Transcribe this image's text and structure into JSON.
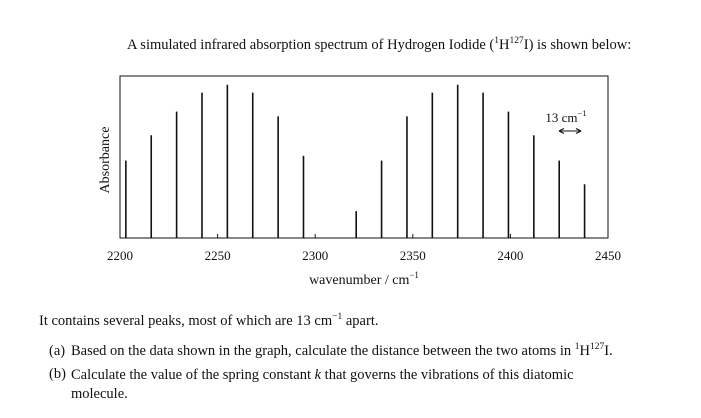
{
  "intro": {
    "before": "A simulated infrared absorption spectrum of Hydrogen Iodide (",
    "sup1": "1",
    "h": "H",
    "sup2": "127",
    "after": "I) is shown below:"
  },
  "chart_data": {
    "type": "bar",
    "xlabel": "wavenumber / cm",
    "xlabel_sup": "−1",
    "ylabel": "Absorbance",
    "xlim": [
      2200,
      2450
    ],
    "xticks": [
      2200,
      2250,
      2300,
      2350,
      2400,
      2450
    ],
    "ylim": [
      0,
      1
    ],
    "grid": false,
    "annotation": {
      "text": "13 cm",
      "sup": "−1"
    },
    "peaks": [
      {
        "x": 2203,
        "y": 0.49
      },
      {
        "x": 2216,
        "y": 0.65
      },
      {
        "x": 2229,
        "y": 0.8
      },
      {
        "x": 2242,
        "y": 0.92
      },
      {
        "x": 2255,
        "y": 0.97
      },
      {
        "x": 2268,
        "y": 0.92
      },
      {
        "x": 2281,
        "y": 0.77
      },
      {
        "x": 2294,
        "y": 0.52
      },
      {
        "x": 2321,
        "y": 0.17
      },
      {
        "x": 2334,
        "y": 0.49
      },
      {
        "x": 2347,
        "y": 0.77
      },
      {
        "x": 2360,
        "y": 0.92
      },
      {
        "x": 2373,
        "y": 0.97
      },
      {
        "x": 2386,
        "y": 0.92
      },
      {
        "x": 2399,
        "y": 0.8
      },
      {
        "x": 2412,
        "y": 0.65
      },
      {
        "x": 2425,
        "y": 0.49
      },
      {
        "x": 2438,
        "y": 0.34
      }
    ]
  },
  "paragraph": {
    "before": "It contains several peaks, most of which are 13 cm",
    "sup": "−1",
    "after": " apart."
  },
  "questions": {
    "a_label": "(a)",
    "a_before": "Based on the data shown in the graph, calculate the distance between the two atoms in ",
    "a_sup1": "1",
    "a_h": "H",
    "a_sup2": "127",
    "a_after": "I.",
    "b_label": "(b)",
    "b_before": "Calculate the value of the spring constant ",
    "b_var": "k",
    "b_after": " that governs the vibrations of this diatomic",
    "b_tail": "molecule."
  }
}
